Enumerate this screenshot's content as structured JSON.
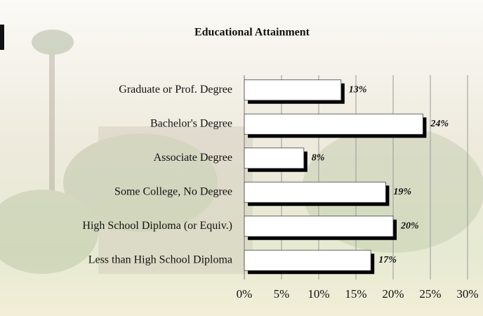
{
  "chart_data": {
    "type": "bar",
    "orientation": "horizontal",
    "title": "Educational Attainment",
    "categories": [
      "Graduate or Prof. Degree",
      "Bachelor's Degree",
      "Associate Degree",
      "Some College, No Degree",
      "High School Diploma (or Equiv.)",
      "Less than High School Diploma"
    ],
    "values": [
      13,
      24,
      8,
      19,
      20,
      17
    ],
    "value_labels": [
      "13%",
      "24%",
      "8%",
      "19%",
      "20%",
      "17%"
    ],
    "color": "#ffffff",
    "xlim": [
      0,
      30
    ],
    "xticks": [
      {
        "value": 0,
        "label": "0%"
      },
      {
        "value": 5,
        "label": "5%"
      },
      {
        "value": 10,
        "label": "10%"
      },
      {
        "value": 15,
        "label": "15%"
      },
      {
        "value": 20,
        "label": "20%"
      },
      {
        "value": 25,
        "label": "25%"
      },
      {
        "value": 30,
        "label": "30%"
      }
    ],
    "grid": true
  }
}
